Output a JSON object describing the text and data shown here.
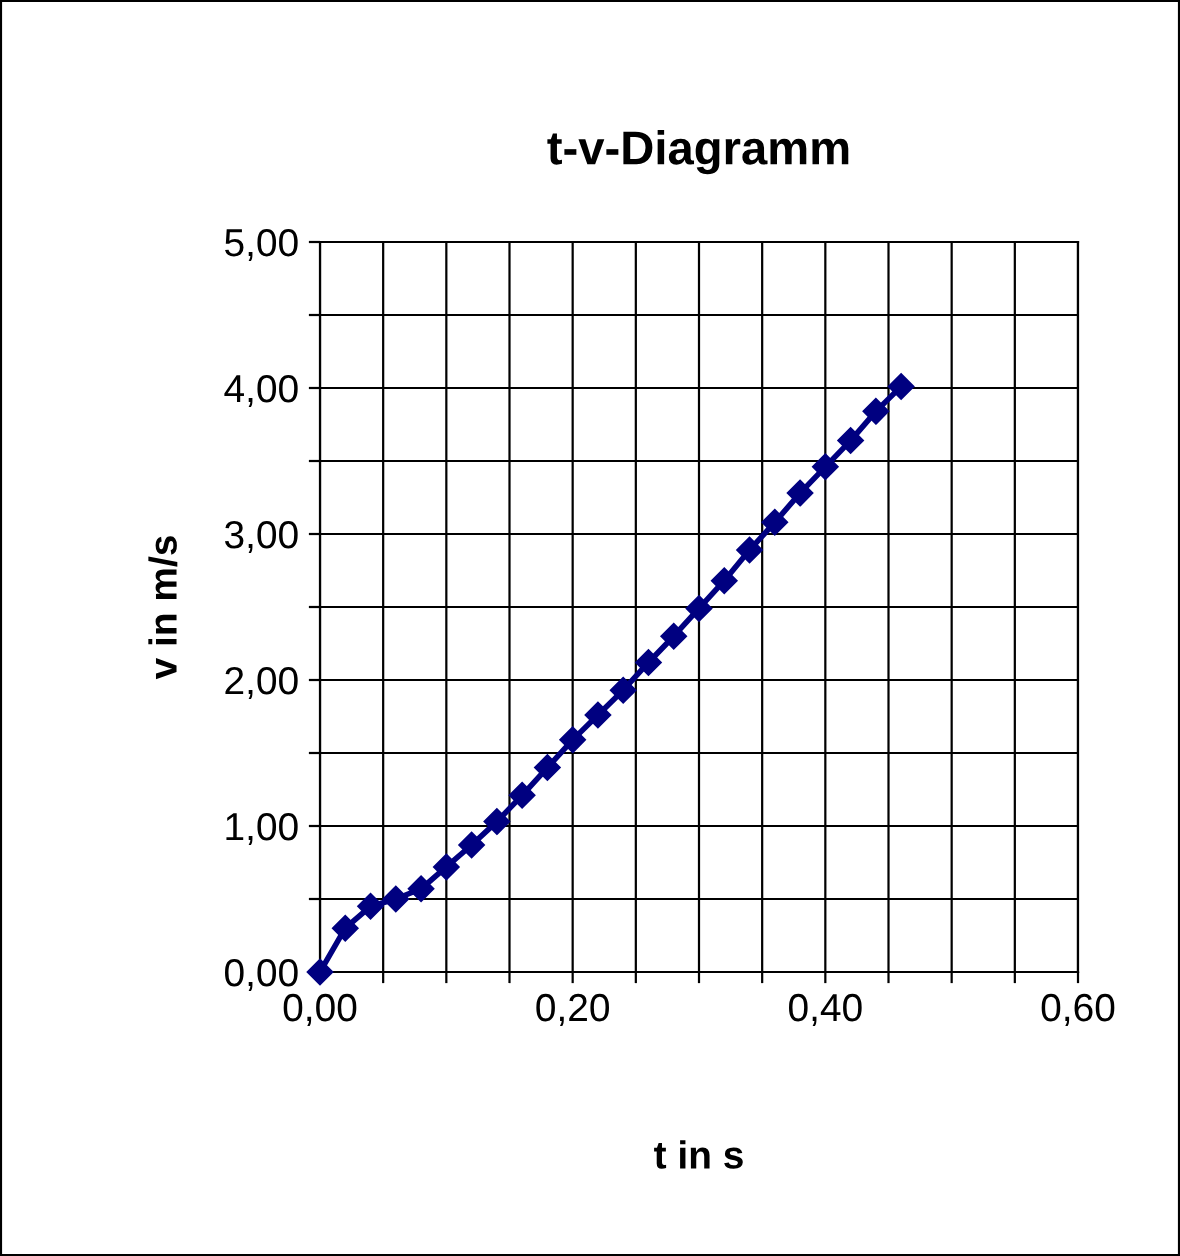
{
  "chart_data": {
    "type": "line",
    "title": "t-v-Diagramm",
    "xlabel": "t in s",
    "ylabel": "v in m/s",
    "x": [
      0,
      0.02,
      0.04,
      0.06,
      0.08,
      0.1,
      0.12,
      0.14,
      0.16,
      0.18,
      0.2,
      0.22,
      0.24,
      0.26,
      0.28,
      0.3,
      0.32,
      0.34,
      0.36,
      0.38,
      0.4,
      0.42,
      0.44,
      0.46
    ],
    "series": [
      {
        "color": "#000080",
        "values": [
          0,
          0.3,
          0.45,
          0.5,
          0.57,
          0.72,
          0.87,
          1.03,
          1.21,
          1.4,
          1.59,
          1.76,
          1.93,
          2.12,
          2.3,
          2.49,
          2.68,
          2.89,
          3.08,
          3.28,
          3.46,
          3.64,
          3.84,
          4.01
        ]
      }
    ],
    "xlim": [
      0,
      0.6
    ],
    "xticks": [
      {
        "value": 0,
        "label": "0,00"
      },
      {
        "value": 0.05,
        "label": null
      },
      {
        "value": 0.1,
        "label": null
      },
      {
        "value": 0.15,
        "label": null
      },
      {
        "value": 0.2,
        "label": "0,20"
      },
      {
        "value": 0.25,
        "label": null
      },
      {
        "value": 0.3,
        "label": null
      },
      {
        "value": 0.35,
        "label": null
      },
      {
        "value": 0.4,
        "label": "0,40"
      },
      {
        "value": 0.45,
        "label": null
      },
      {
        "value": 0.5,
        "label": null
      },
      {
        "value": 0.55,
        "label": null
      },
      {
        "value": 0.6,
        "label": "0,60"
      }
    ],
    "ylim": [
      0,
      5
    ],
    "yticks": [
      {
        "value": 0,
        "label": "0,00"
      },
      {
        "value": 0.5,
        "label": null
      },
      {
        "value": 1,
        "label": "1,00"
      },
      {
        "value": 1.5,
        "label": null
      },
      {
        "value": 2,
        "label": "2,00"
      },
      {
        "value": 2.5,
        "label": null
      },
      {
        "value": 3,
        "label": "3,00"
      },
      {
        "value": 3.5,
        "label": null
      },
      {
        "value": 4,
        "label": "4,00"
      },
      {
        "value": 4.5,
        "label": null
      },
      {
        "value": 5,
        "label": "5,00"
      }
    ],
    "grid": true,
    "marker": "diamond",
    "line_style": "solid",
    "legend": false
  }
}
